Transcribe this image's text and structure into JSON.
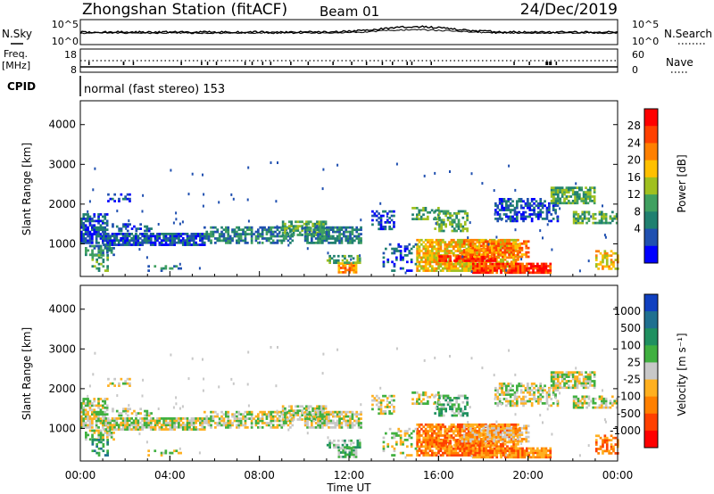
{
  "header": {
    "title": "Zhongshan Station (fitACF)",
    "beam": "Beam 01",
    "date": "24/Dec/2019"
  },
  "top_panel": {
    "left_label": "N.Sky",
    "right_label": "N.Search",
    "left_ticks": [
      "10^5",
      "10^0"
    ],
    "right_ticks": [
      "10^5",
      "10^0"
    ]
  },
  "freq_panel": {
    "left_label_line1": "Freq.",
    "left_label_line2": "[MHz]",
    "right_label": "Nave",
    "left_ticks": [
      "18",
      "8"
    ],
    "right_ticks": [
      "60",
      "0"
    ]
  },
  "cpid": {
    "label": "CPID",
    "value": "normal (fast stereo) 153"
  },
  "chart_data": [
    {
      "type": "heatmap",
      "name": "power",
      "ylabel": "Slant Range [km]",
      "y_ticks": [
        "4000",
        "3000",
        "2000",
        "1000"
      ],
      "y_tick_values": [
        4000,
        3000,
        2000,
        1000
      ],
      "ylim": [
        180,
        4600
      ],
      "colorbar_label": "Power [dB]",
      "colorbar_ticks": [
        "28",
        "24",
        "20",
        "16",
        "12",
        "8",
        "4"
      ],
      "colorbar_tick_values": [
        28,
        24,
        20,
        16,
        12,
        8,
        4
      ],
      "colorbar_colors": [
        "#ff0000",
        "#ff4000",
        "#ff8000",
        "#ffc000",
        "#a0c020",
        "#40a060",
        "#208070",
        "#2050b0",
        "#0000ff"
      ]
    },
    {
      "type": "heatmap",
      "name": "velocity",
      "ylabel": "Slant Range [km]",
      "y_ticks": [
        "4000",
        "3000",
        "2000",
        "1000"
      ],
      "y_tick_values": [
        4000,
        3000,
        2000,
        1000
      ],
      "ylim": [
        180,
        4600
      ],
      "xlabel": "Time UT",
      "x_ticks": [
        "00:00",
        "04:00",
        "08:00",
        "12:00",
        "16:00",
        "20:00",
        "00:00"
      ],
      "x_tick_values": [
        0,
        4,
        8,
        12,
        16,
        20,
        24
      ],
      "colorbar_label": "Velocity [m s⁻¹]",
      "colorbar_ticks": [
        "1000",
        "500",
        "100",
        "25",
        "-25",
        "-100",
        "-500",
        "-1000"
      ],
      "colorbar_tick_values": [
        1000,
        500,
        100,
        25,
        -25,
        -100,
        -500,
        -1000
      ],
      "colorbar_colors": [
        "#1040c0",
        "#207090",
        "#209060",
        "#40b040",
        "#c8c8c8",
        "#ffb020",
        "#ff8000",
        "#ff4000",
        "#ff0000"
      ]
    }
  ]
}
